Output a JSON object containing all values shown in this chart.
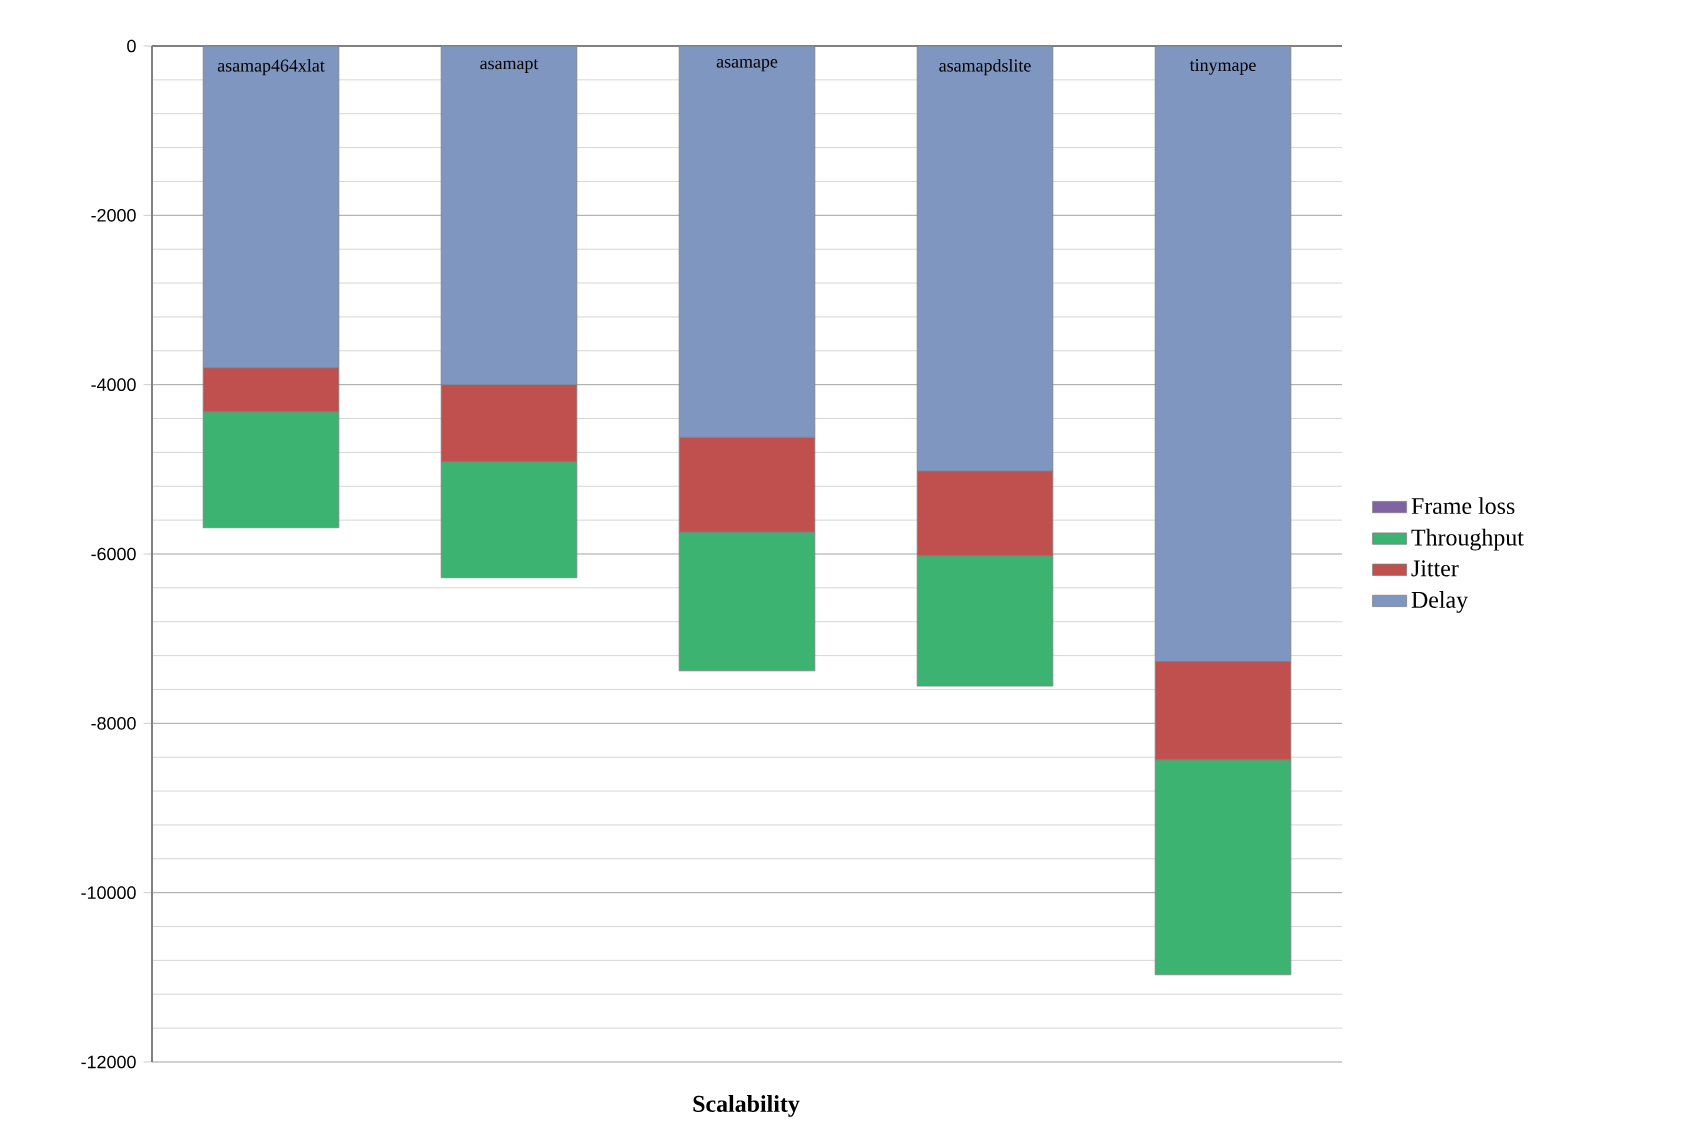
{
  "chart_data": {
    "type": "bar",
    "stacked": true,
    "xlabel": "Scalability",
    "categories": [
      "asamap464xlat",
      "asamapt",
      "asamape",
      "asamapdslite",
      "tinymape"
    ],
    "series": [
      {
        "name": "Delay",
        "color": "#7f96c0",
        "values": [
          -3800,
          -4000,
          -4620,
          -5020,
          -7270
        ]
      },
      {
        "name": "Jitter",
        "color": "#c0504d",
        "values": [
          -520,
          -910,
          -1120,
          -1000,
          -1160
        ]
      },
      {
        "name": "Throughput",
        "color": "#3cb371",
        "values": [
          -1370,
          -1370,
          -1640,
          -1540,
          -2540
        ]
      },
      {
        "name": "Frame loss",
        "color": "#8064a2",
        "values": [
          0,
          0,
          0,
          0,
          0
        ]
      }
    ],
    "ylim": [
      -12000,
      0
    ],
    "yticks": [
      -12000,
      -10000,
      -8000,
      -6000,
      -4000,
      -2000,
      0
    ],
    "grid": "y",
    "legend": "right"
  }
}
